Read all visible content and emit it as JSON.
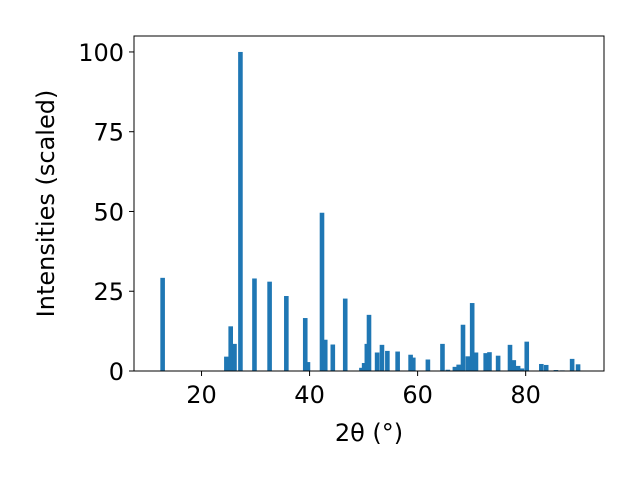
{
  "chart_data": {
    "type": "bar",
    "xlabel": "2θ (°)",
    "ylabel": "Intensities (scaled)",
    "xlim": [
      7.5,
      94.5
    ],
    "ylim": [
      0,
      105
    ],
    "xticks": [
      20,
      40,
      60,
      80
    ],
    "yticks": [
      0,
      25,
      50,
      75,
      100
    ],
    "bar_color": "#1f77b4",
    "grid": false,
    "x": [
      12.8,
      24.6,
      25.4,
      26.1,
      27.2,
      29.8,
      32.6,
      35.7,
      39.2,
      39.7,
      42.3,
      42.9,
      44.3,
      46.6,
      49.6,
      50.1,
      50.6,
      51.0,
      52.5,
      53.4,
      54.4,
      56.3,
      58.7,
      59.2,
      61.9,
      64.6,
      65.6,
      66.9,
      67.6,
      68.4,
      69.3,
      70.1,
      70.8,
      72.6,
      73.3,
      74.9,
      77.1,
      77.8,
      78.6,
      79.3,
      80.2,
      82.9,
      83.8,
      85.6,
      86.8,
      88.6,
      89.7
    ],
    "values": [
      29.2,
      4.5,
      14.0,
      8.5,
      100,
      29.0,
      28.0,
      23.5,
      16.6,
      2.8,
      49.6,
      9.8,
      8.3,
      22.7,
      1.0,
      2.5,
      8.5,
      17.6,
      5.8,
      8.2,
      6.3,
      6.1,
      5.1,
      4.2,
      3.6,
      8.5,
      0.4,
      1.3,
      2.0,
      14.5,
      4.6,
      21.3,
      5.8,
      5.6,
      5.9,
      4.8,
      8.2,
      3.4,
      1.6,
      0.8,
      9.2,
      2.2,
      1.9,
      0.3,
      0.2,
      3.8,
      2.1
    ]
  }
}
